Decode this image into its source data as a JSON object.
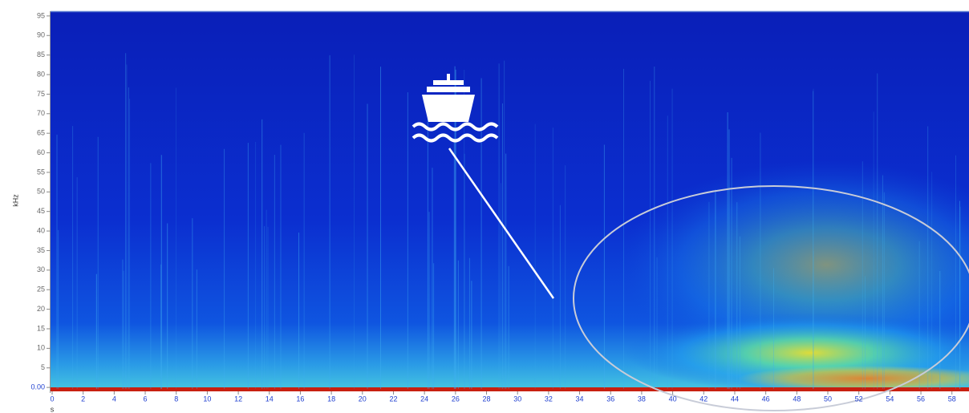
{
  "chart_data": {
    "type": "spectrogram",
    "ylabel": "kHz",
    "xlabel": "s",
    "ylim": [
      -1,
      96
    ],
    "yticks": [
      {
        "value": 0,
        "label": "0.00"
      },
      5,
      10,
      15,
      20,
      25,
      30,
      35,
      40,
      45,
      50,
      55,
      60,
      65,
      70,
      75,
      80,
      85,
      90,
      95
    ],
    "xlim": [
      0,
      59.1
    ],
    "xticks": [
      0,
      2,
      4,
      6,
      8,
      10,
      12,
      14,
      16,
      18,
      20,
      22,
      24,
      26,
      28,
      30,
      32,
      34,
      36,
      38,
      40,
      42,
      44,
      46,
      48,
      50,
      52,
      54,
      56,
      58
    ]
  }
}
